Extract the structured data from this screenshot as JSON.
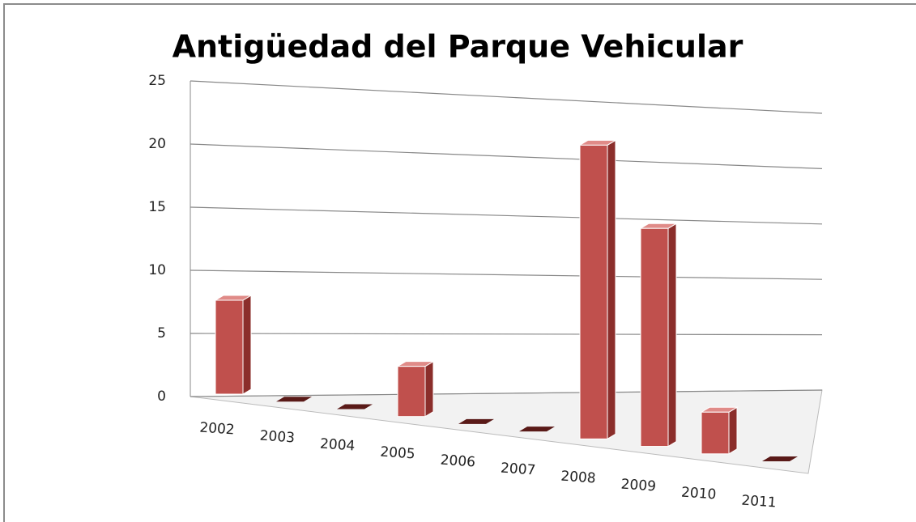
{
  "chart_data": {
    "type": "bar3d",
    "title": "Antigüedad del Parque Vehicular",
    "categories": [
      "2002",
      "2003",
      "2004",
      "2005",
      "2006",
      "2007",
      "2008",
      "2009",
      "2010",
      "2011"
    ],
    "values": [
      8,
      0,
      0,
      4,
      0,
      0,
      22,
      16,
      3,
      0
    ],
    "color": "#c0504d",
    "ylim": [
      0,
      25
    ],
    "yticks": [
      0,
      5,
      10,
      15,
      20,
      25
    ],
    "grid": true
  }
}
